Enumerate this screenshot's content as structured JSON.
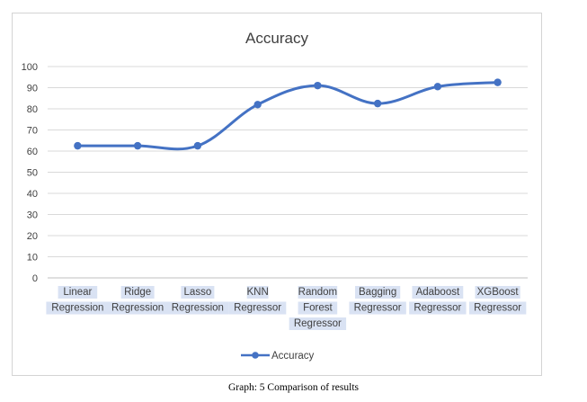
{
  "chart_data": {
    "type": "line",
    "title": "Accuracy",
    "categories": [
      [
        "Linear",
        "Regression"
      ],
      [
        "Ridge",
        "Regression"
      ],
      [
        "Lasso",
        "Regression"
      ],
      [
        "KNN",
        "Regressor"
      ],
      [
        "Random",
        "Forest",
        "Regressor"
      ],
      [
        "Bagging",
        "Regressor"
      ],
      [
        "Adaboost",
        "Regressor"
      ],
      [
        "XGBoost",
        "Regressor"
      ]
    ],
    "series": [
      {
        "name": "Accuracy",
        "values": [
          62.5,
          62.5,
          62.5,
          82,
          91,
          82.5,
          90.5,
          92.5
        ]
      }
    ],
    "ylim": [
      0,
      100
    ],
    "yticks": [
      0,
      10,
      20,
      30,
      40,
      50,
      60,
      70,
      80,
      90,
      100
    ],
    "xlabel": "",
    "ylabel": "",
    "grid": true,
    "legend": "bottom",
    "line_color": "#4472c4",
    "category_label_bg": "#d9e2f3"
  },
  "caption": "Graph: 5 Comparison of results"
}
